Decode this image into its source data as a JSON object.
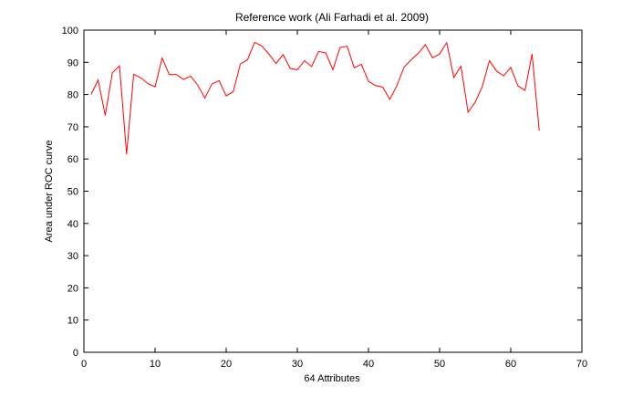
{
  "chart_data": {
    "type": "line",
    "title": "Reference work (Ali Farhadi et al. 2009)",
    "xlabel": "64 Attributes",
    "ylabel": "Area under ROC curve",
    "xlim": [
      0,
      70
    ],
    "ylim": [
      0,
      100
    ],
    "xticks": [
      0,
      10,
      20,
      30,
      40,
      50,
      60,
      70
    ],
    "yticks": [
      0,
      10,
      20,
      30,
      40,
      50,
      60,
      70,
      80,
      90,
      100
    ],
    "grid": false,
    "series": [
      {
        "color": "#ff0000",
        "x": [
          1,
          2,
          3,
          4,
          5,
          6,
          7,
          8,
          9,
          10,
          11,
          12,
          13,
          14,
          15,
          16,
          17,
          18,
          19,
          20,
          21,
          22,
          23,
          24,
          25,
          26,
          27,
          28,
          29,
          30,
          31,
          32,
          33,
          34,
          35,
          36,
          37,
          38,
          39,
          40,
          41,
          42,
          43,
          44,
          45,
          46,
          47,
          48,
          49,
          50,
          51,
          52,
          53,
          54,
          55,
          56,
          57,
          58,
          59,
          60,
          61,
          62,
          63,
          64
        ],
        "values": [
          80.0,
          84.5,
          73.5,
          86.8,
          88.9,
          61.5,
          86.3,
          85.2,
          83.4,
          82.4,
          91.3,
          86.2,
          86.2,
          84.7,
          85.7,
          82.9,
          78.9,
          83.3,
          84.3,
          79.6,
          80.9,
          89.5,
          90.8,
          96.2,
          95.1,
          92.6,
          89.6,
          92.4,
          88.1,
          87.7,
          90.5,
          88.7,
          93.4,
          92.9,
          87.7,
          94.6,
          95.0,
          88.3,
          89.4,
          84.1,
          82.8,
          82.3,
          78.5,
          82.8,
          88.5,
          90.8,
          92.8,
          95.5,
          91.4,
          92.6,
          96.1,
          85.3,
          88.8,
          74.5,
          77.6,
          82.5,
          90.5,
          87.3,
          85.8,
          88.4,
          82.7,
          81.3,
          92.6,
          68.8
        ]
      }
    ]
  }
}
